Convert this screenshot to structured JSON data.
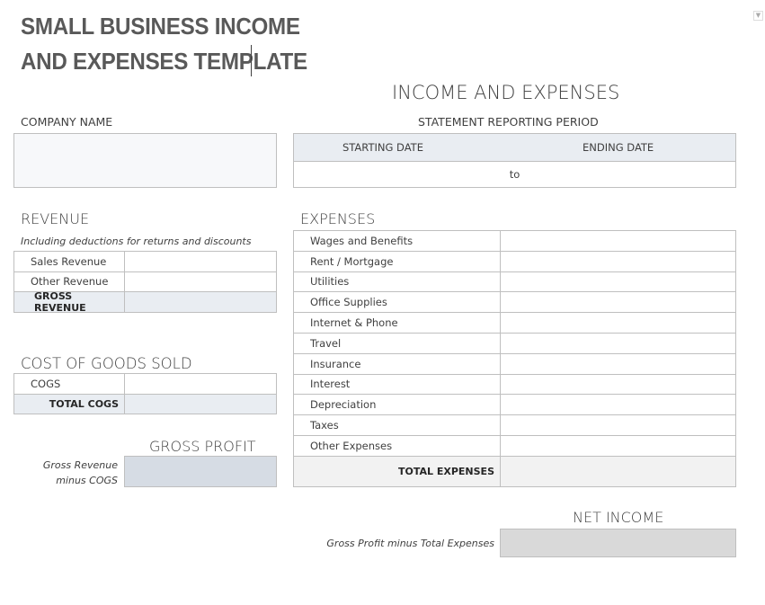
{
  "title_line1": "SMALL BUSINESS INCOME",
  "title_line2": "AND EXPENSES TEMPLATE",
  "main_heading": "INCOME AND EXPENSES",
  "company_name_label": "COMPANY NAME",
  "company_name_value": "",
  "period": {
    "label": "STATEMENT REPORTING PERIOD",
    "start_label": "STARTING DATE",
    "end_label": "ENDING DATE",
    "separator": "to"
  },
  "revenue": {
    "heading": "REVENUE",
    "note": "Including deductions for returns and discounts",
    "rows": [
      {
        "label": "Sales Revenue",
        "value": ""
      },
      {
        "label": "Other Revenue",
        "value": ""
      }
    ],
    "total_label": "GROSS REVENUE"
  },
  "cogs": {
    "heading": "COST OF GOODS SOLD",
    "rows": [
      {
        "label": "COGS",
        "value": ""
      }
    ],
    "total_label": "TOTAL COGS"
  },
  "gross_profit": {
    "heading": "GROSS PROFIT",
    "note_line1": "Gross Revenue",
    "note_line2": "minus COGS"
  },
  "expenses": {
    "heading": "EXPENSES",
    "rows": [
      {
        "label": "Wages and Benefits"
      },
      {
        "label": "Rent / Mortgage"
      },
      {
        "label": "Utilities"
      },
      {
        "label": "Office Supplies"
      },
      {
        "label": "Internet & Phone"
      },
      {
        "label": "Travel"
      },
      {
        "label": "Insurance"
      },
      {
        "label": "Interest"
      },
      {
        "label": "Depreciation"
      },
      {
        "label": "Taxes"
      },
      {
        "label": "Other Expenses"
      }
    ],
    "total_label": "TOTAL EXPENSES"
  },
  "net_income": {
    "heading": "NET INCOME",
    "note": "Gross Profit minus Total Expenses"
  },
  "colors": {
    "header_fill": "#e9edf2",
    "gross_profit_fill": "#d6dce4",
    "net_income_fill": "#d9d9d9",
    "total_expense_fill": "#f2f2f2"
  }
}
